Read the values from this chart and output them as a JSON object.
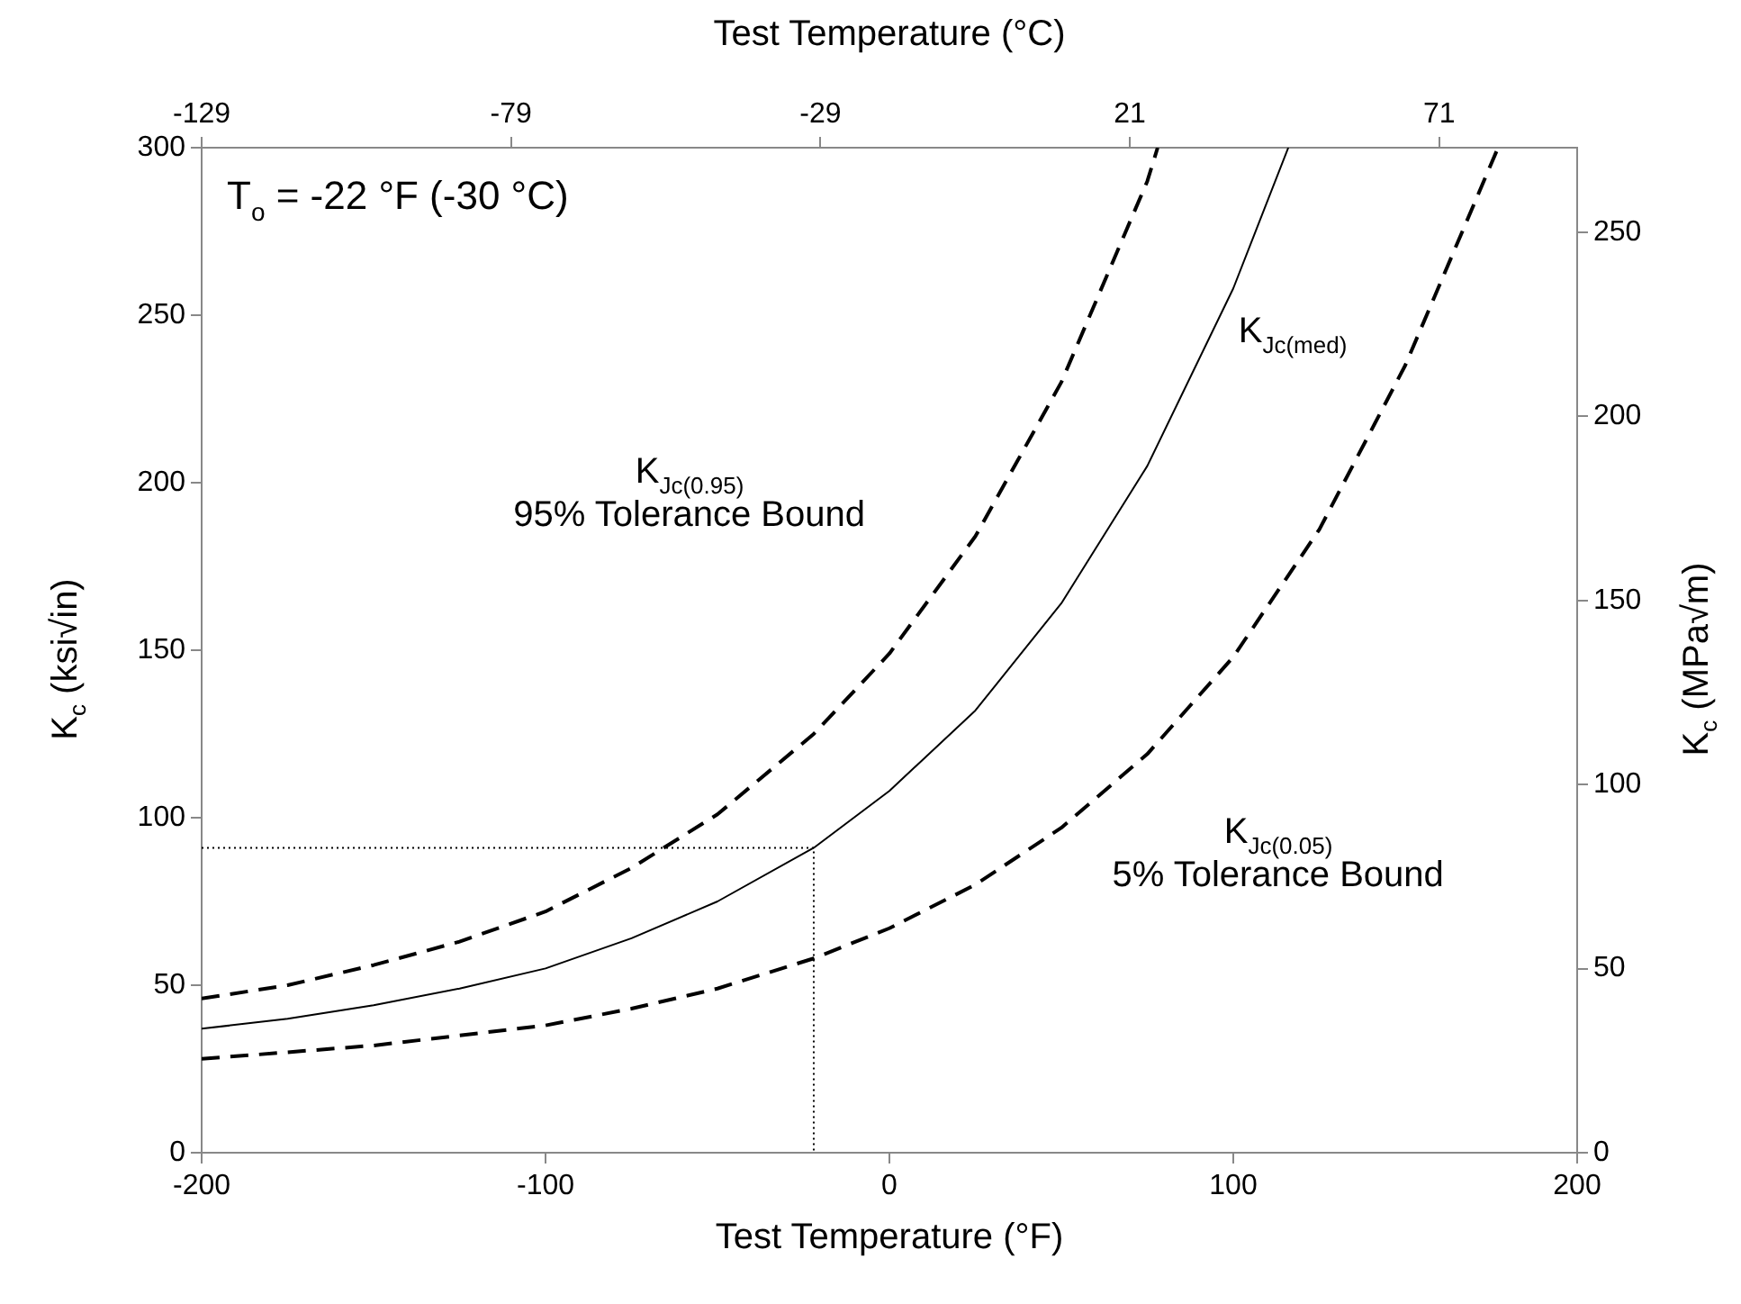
{
  "chart_data": {
    "type": "line",
    "xlabel": "Test Temperature (°F)",
    "x2label": "Test Temperature (°C)",
    "ylabel": "K$_{c}$ (ksi√in)",
    "y2label": "K$_{c}$ (MPa√m)",
    "xlim": [
      -200,
      200
    ],
    "xticks": [
      -200,
      -100,
      0,
      100,
      200
    ],
    "x2lim": [
      -129,
      93.3
    ],
    "x2ticks": [
      -129,
      -79,
      -29,
      21,
      71
    ],
    "ylim": [
      0,
      300
    ],
    "yticks": [
      0,
      50,
      100,
      150,
      200,
      250,
      300
    ],
    "y2lim": [
      0,
      273
    ],
    "y2ticks": [
      0,
      50,
      100,
      150,
      200,
      250
    ],
    "grid": false,
    "legend": false,
    "marker": "none",
    "series": [
      {
        "color": "#000000",
        "line_style": "dashed",
        "x": [
          -200,
          -175,
          -150,
          -125,
          -100,
          -75,
          -50,
          -22,
          0,
          25,
          50,
          75,
          78
        ],
        "values": [
          46,
          50,
          56,
          63,
          72,
          85,
          101,
          125,
          149,
          184,
          230,
          290,
          300
        ]
      },
      {
        "color": "#000000",
        "line_style": "solid",
        "x": [
          -200,
          -175,
          -150,
          -125,
          -100,
          -75,
          -50,
          -22,
          0,
          25,
          50,
          75,
          100,
          116
        ],
        "values": [
          37,
          40,
          44,
          49,
          55,
          64,
          75,
          91,
          108,
          132,
          164,
          205,
          258,
          300
        ]
      },
      {
        "color": "#000000",
        "line_style": "dashed",
        "x": [
          -200,
          -175,
          -150,
          -125,
          -100,
          -75,
          -50,
          -22,
          0,
          25,
          50,
          75,
          100,
          125,
          150,
          177
        ],
        "values": [
          28,
          30,
          32,
          35,
          38,
          43,
          49,
          58,
          67,
          80,
          97,
          119,
          148,
          186,
          235,
          300
        ]
      },
      {
        "color": "#000000",
        "line_style": "dotted",
        "x": [
          -200,
          -22,
          -22
        ],
        "values": [
          91,
          91,
          0
        ]
      }
    ],
    "annotations": [
      "T$_{o}$ = -22 °F (-30 °C)",
      "K$_{Jc(0.95)}$\n95% Tolerance Bound",
      "K$_{Jc(med)}$",
      "K$_{Jc(0.05)}$\n5% Tolerance Bound"
    ]
  }
}
